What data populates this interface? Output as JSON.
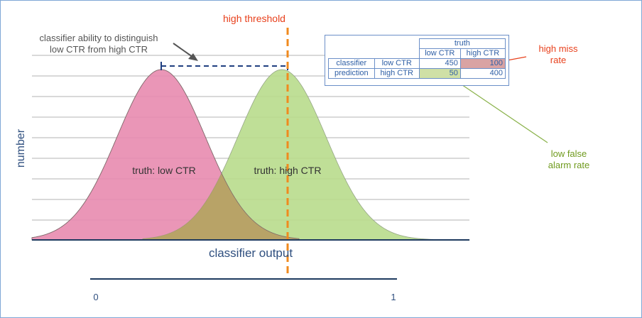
{
  "annotations": {
    "threshold_label": "high threshold",
    "ability_label_line1": "classifier ability to distinguish",
    "ability_label_line2": "low CTR from high CTR",
    "curve_low_label": "truth: low CTR",
    "curve_high_label": "truth: high CTR",
    "y_axis_label": "number",
    "x_axis_label": "classifier output",
    "miss_label_line1": "high miss",
    "miss_label_line2": "rate",
    "fa_label_line1": "low false",
    "fa_label_line2": "alarm rate",
    "scale_min": "0",
    "scale_max": "1"
  },
  "table": {
    "truth_header": "truth",
    "col_low": "low CTR",
    "col_high": "high CTR",
    "row_group_line1": "classifier",
    "row_group_line2": "prediction",
    "row_low": "low CTR",
    "row_high": "high CTR",
    "cells": {
      "low_low": "450",
      "low_high": "100",
      "high_low": "50",
      "high_high": "400"
    }
  },
  "colors": {
    "low_curve": "#e88bb0",
    "high_curve": "#b9dc8c",
    "overlap": "#b79a60",
    "threshold": "#f08a1e",
    "miss_text": "#e8401c",
    "fa_text": "#6f9a1d",
    "arrow_dash": "#1f3f80"
  }
}
